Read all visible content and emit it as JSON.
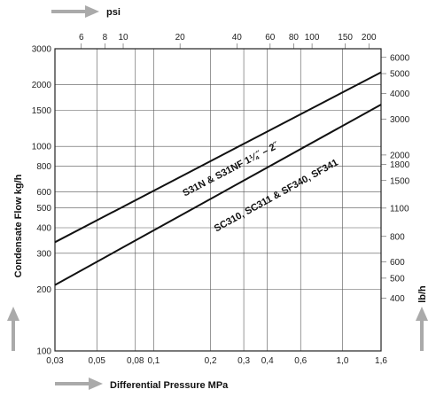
{
  "chart_data": {
    "type": "line",
    "xlabel": "Differential Pressure MPa",
    "x_top_label": "psi",
    "ylabel": "Condensate Flow kg/h",
    "y_right_label": "lb/h",
    "x_scale": "log",
    "y_scale": "log",
    "xlim": [
      0.03,
      1.6
    ],
    "ylim": [
      100,
      3000
    ],
    "grid": true,
    "x_ticks": [
      {
        "value": 0.03,
        "label": "0,03"
      },
      {
        "value": 0.05,
        "label": "0,05"
      },
      {
        "value": 0.08,
        "label": "0,08"
      },
      {
        "value": 0.1,
        "label": "0,1"
      },
      {
        "value": 0.2,
        "label": "0,2"
      },
      {
        "value": 0.3,
        "label": "0,3"
      },
      {
        "value": 0.4,
        "label": "0,4"
      },
      {
        "value": 0.6,
        "label": "0,6"
      },
      {
        "value": 1.0,
        "label": "1,0"
      },
      {
        "value": 1.6,
        "label": "1,6"
      }
    ],
    "x_top_ticks": [
      {
        "value": 6,
        "label": "6"
      },
      {
        "value": 8,
        "label": "8"
      },
      {
        "value": 10,
        "label": "10"
      },
      {
        "value": 20,
        "label": "20"
      },
      {
        "value": 40,
        "label": "40"
      },
      {
        "value": 60,
        "label": "60"
      },
      {
        "value": 80,
        "label": "80"
      },
      {
        "value": 100,
        "label": "100"
      },
      {
        "value": 150,
        "label": "150"
      },
      {
        "value": 200,
        "label": "200"
      }
    ],
    "y_ticks": [
      {
        "value": 100,
        "label": "100"
      },
      {
        "value": 200,
        "label": "200"
      },
      {
        "value": 300,
        "label": "300"
      },
      {
        "value": 400,
        "label": "400"
      },
      {
        "value": 500,
        "label": "500"
      },
      {
        "value": 600,
        "label": "600"
      },
      {
        "value": 800,
        "label": "800"
      },
      {
        "value": 1000,
        "label": "1000"
      },
      {
        "value": 1500,
        "label": "1500"
      },
      {
        "value": 2000,
        "label": "2000"
      },
      {
        "value": 3000,
        "label": "3000"
      }
    ],
    "y_right_ticks": [
      {
        "value": 400,
        "label": "400"
      },
      {
        "value": 500,
        "label": "500"
      },
      {
        "value": 600,
        "label": "600"
      },
      {
        "value": 800,
        "label": "800"
      },
      {
        "value": 1100,
        "label": "1100"
      },
      {
        "value": 1500,
        "label": "1500"
      },
      {
        "value": 1800,
        "label": "1800"
      },
      {
        "value": 2000,
        "label": "2000"
      },
      {
        "value": 3000,
        "label": "3000"
      },
      {
        "value": 4000,
        "label": "4000"
      },
      {
        "value": 5000,
        "label": "5000"
      },
      {
        "value": 6000,
        "label": "6000"
      }
    ],
    "series": [
      {
        "name": "S31N & S31NF  1¼˝ – 2˝",
        "x": [
          0.03,
          1.6
        ],
        "y": [
          340,
          2300
        ]
      },
      {
        "name": "SC310, SC311 & SF340, SF341",
        "x": [
          0.03,
          1.6
        ],
        "y": [
          210,
          1600
        ]
      }
    ]
  }
}
